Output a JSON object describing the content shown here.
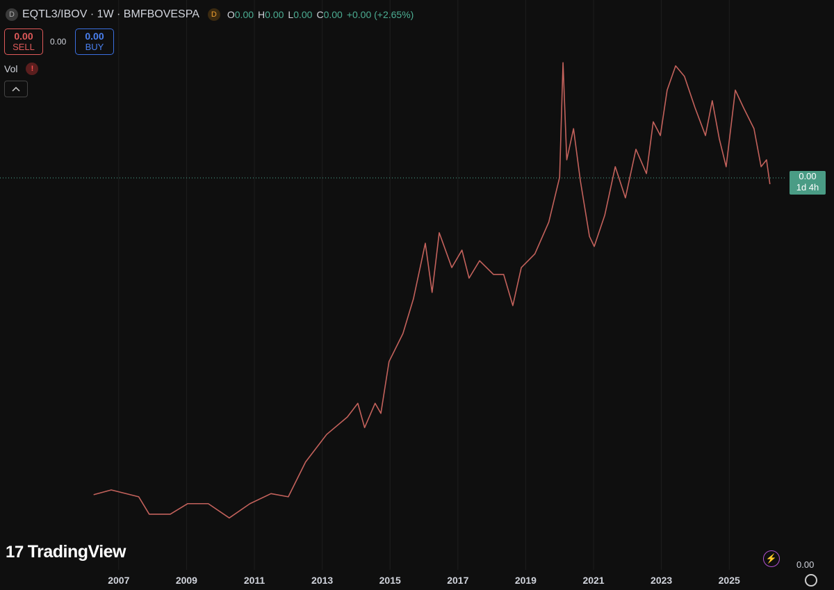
{
  "ui": {
    "symbol_icon": "D",
    "symbol": "EQTL3/IBOV · 1W · BMFBOVESPA",
    "data_badge": "D",
    "ohlc": [
      {
        "label": "O",
        "value": "0.00"
      },
      {
        "label": "H",
        "value": "0.00"
      },
      {
        "label": "L",
        "value": "0.00"
      },
      {
        "label": "C",
        "value": "0.00"
      }
    ],
    "change": "+0.00 (+2.65%)",
    "sell": {
      "price": "0.00",
      "label": "SELL"
    },
    "spread": "0.00",
    "buy": {
      "price": "0.00",
      "label": "BUY"
    },
    "volume": "Vol",
    "warning": "!",
    "price_label": "0.00",
    "countdown": "1d 4h",
    "scale_value": "0.00",
    "logo_mark": "17",
    "logo": "TradingView"
  },
  "chart_data": {
    "type": "line",
    "x": [
      2006.26,
      2006.78,
      2007.59,
      2007.9,
      2008.52,
      2009.03,
      2009.64,
      2010.26,
      2010.87,
      2011.49,
      2012.0,
      2012.51,
      2013.13,
      2013.74,
      2014.05,
      2014.25,
      2014.56,
      2014.73,
      2014.97,
      2015.38,
      2015.69,
      2016.04,
      2016.24,
      2016.45,
      2016.82,
      2017.12,
      2017.33,
      2017.64,
      2018.05,
      2018.35,
      2018.62,
      2018.87,
      2019.27,
      2019.68,
      2020.0,
      2020.1,
      2020.21,
      2020.41,
      2020.61,
      2020.88,
      2021.02,
      2021.33,
      2021.64,
      2021.94,
      2022.25,
      2022.56,
      2022.76,
      2022.97,
      2023.17,
      2023.42,
      2023.68,
      2023.99,
      2024.3,
      2024.5,
      2024.71,
      2024.91,
      2025.18,
      2025.42,
      2025.73,
      2025.94,
      2026.1,
      2026.2
    ],
    "values": [
      1.16,
      1.25,
      1.12,
      0.79,
      0.79,
      0.99,
      0.99,
      0.72,
      0.99,
      1.18,
      1.12,
      1.78,
      2.3,
      2.63,
      2.89,
      2.43,
      2.89,
      2.7,
      3.68,
      4.21,
      4.87,
      5.92,
      4.99,
      6.12,
      5.46,
      5.79,
      5.26,
      5.59,
      5.33,
      5.33,
      4.74,
      5.46,
      5.72,
      6.32,
      7.17,
      9.34,
      7.5,
      8.09,
      7.11,
      6.05,
      5.86,
      6.45,
      7.37,
      6.78,
      7.7,
      7.24,
      8.22,
      7.96,
      8.82,
      9.28,
      9.08,
      8.49,
      7.96,
      8.62,
      7.89,
      7.37,
      8.82,
      8.49,
      8.09,
      7.37,
      7.5,
      7.04
    ],
    "color": "#c4625c",
    "xlim": [
      2003.5,
      2026.86
    ],
    "xticks": [
      2007,
      2009,
      2011,
      2013,
      2015,
      2017,
      2019,
      2021,
      2023,
      2025
    ],
    "ylim": [
      0,
      10
    ],
    "grid": true
  }
}
